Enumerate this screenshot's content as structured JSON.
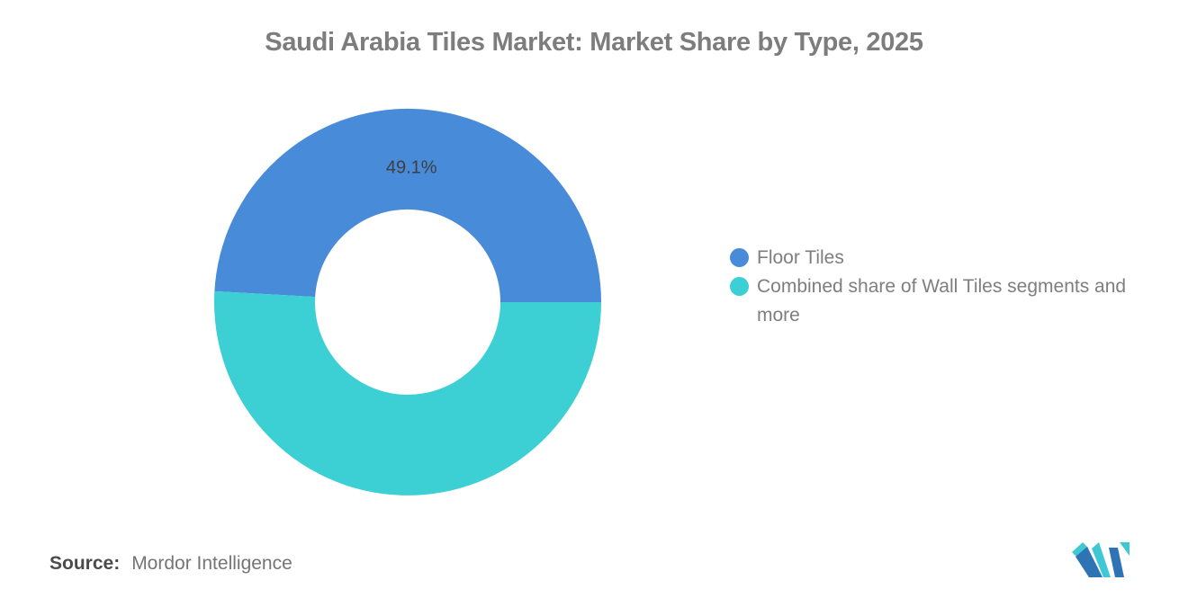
{
  "chart_data": {
    "type": "pie",
    "title": "Saudi Arabia Tiles Market: Market Share by Type, 2025",
    "slices": [
      {
        "label": "Floor Tiles",
        "value": 49.1,
        "color": "#488BD8",
        "data_label": "49.1%"
      },
      {
        "label": "Combined share of Wall Tiles segments and more",
        "value": 50.9,
        "color": "#3CCFD3",
        "data_label": ""
      }
    ],
    "donut_hole_ratio": 0.478,
    "start_angle_deg": 0,
    "direction": "counterclockwise",
    "legend_position": "right",
    "data_label_color": "#3f3f3f"
  },
  "source": {
    "label": "Source:",
    "value": "Mordor Intelligence"
  },
  "logo": {
    "name": "mordor-intelligence-logo",
    "blue": "#2E74B5",
    "teal": "#3FC8D4"
  }
}
